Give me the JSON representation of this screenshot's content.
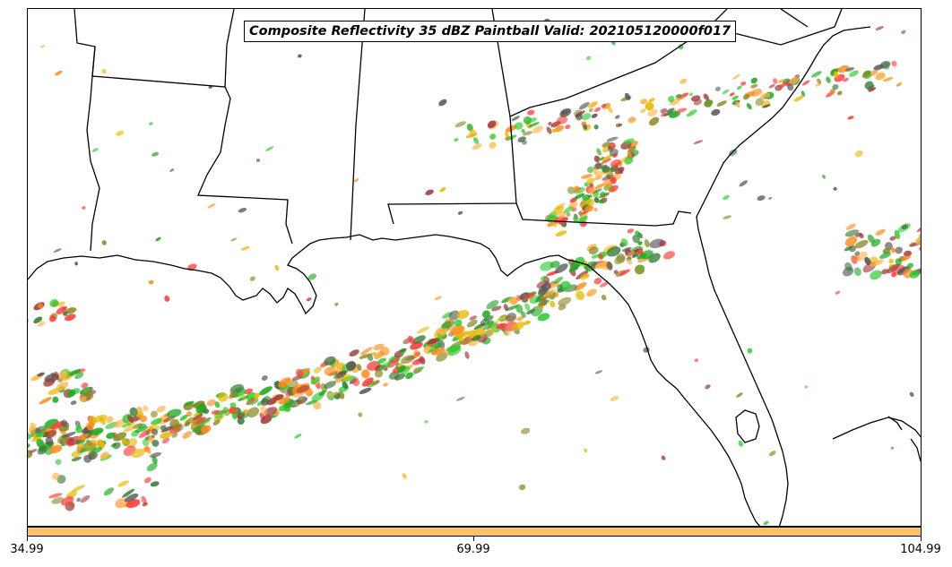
{
  "title": "Composite Reflectivity 35 dBZ Paintball Valid: 202105120000f017",
  "colorbar": {
    "color": "#ffc266",
    "ticks": [
      "34.99",
      "69.99",
      "104.99"
    ]
  },
  "map": {
    "region": "Southeastern United States and Gulf of Mexico",
    "land_color": "#ffffff",
    "water_color": "#ffffff",
    "border_color": "#000000"
  },
  "paintball_colors": [
    "#ff3b3b",
    "#ff8c1a",
    "#33cc33",
    "#a03c3c",
    "#8c8c2a",
    "#3a7a3a",
    "#555555",
    "#ffb347",
    "#e6b800",
    "#22aa22"
  ]
}
